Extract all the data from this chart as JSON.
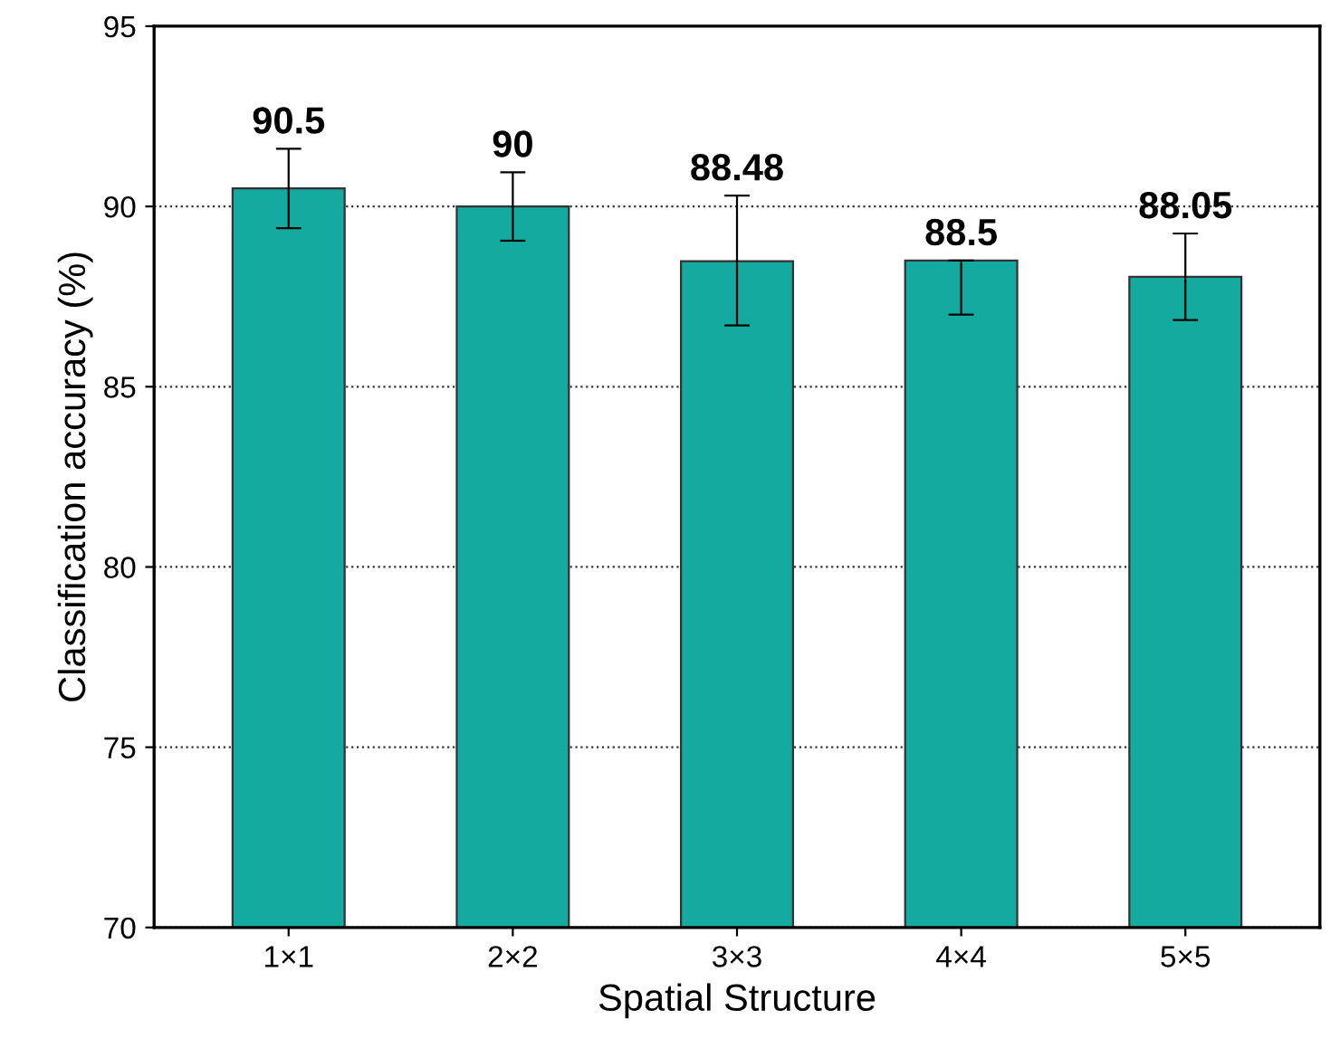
{
  "chart_data": {
    "type": "bar",
    "xlabel": "Spatial Structure",
    "ylabel": "Classification accuracy (%)",
    "categories": [
      "1×1",
      "2×2",
      "3×3",
      "4×4",
      "5×5"
    ],
    "values": [
      90.5,
      90,
      88.48,
      88.5,
      88.05
    ],
    "errors": [
      [
        89.4,
        91.6
      ],
      [
        89.05,
        90.95
      ],
      [
        86.7,
        90.3
      ],
      [
        87.0,
        88.5
      ],
      [
        86.85,
        89.25
      ]
    ],
    "color": "#14aaa0",
    "data_labels": true,
    "ylim": [
      70,
      95
    ],
    "yticks": [
      70,
      75,
      80,
      85,
      90,
      95
    ],
    "grid": "y",
    "line_style": "dotted"
  }
}
